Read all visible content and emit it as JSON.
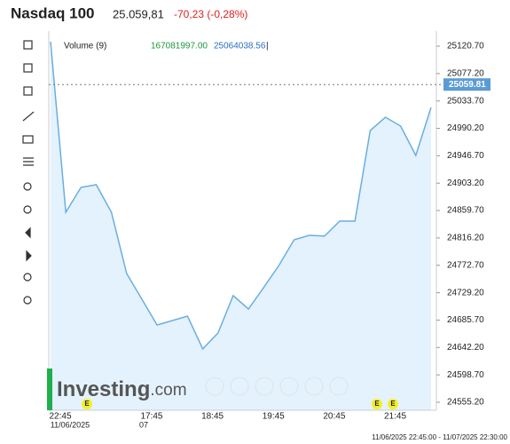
{
  "header": {
    "name": "Nasdaq 100",
    "price": "25.059,81",
    "change": "-70,23 (-0,28%)"
  },
  "legend": {
    "volume_label": "Volume (9)",
    "volume_value": "167081997.00",
    "ma_value": "25064038.56",
    "separator": "|"
  },
  "logo": [
    "Investing",
    ".com"
  ],
  "events": [
    "E",
    "E",
    "E"
  ],
  "range": "11/06/2025 22:45:00 - 11/07/2025 22:30:00",
  "chart_data": {
    "type": "area",
    "categories": [
      "22:45",
      null,
      null,
      null,
      null,
      null,
      "17:45",
      null,
      null,
      null,
      "18:45",
      null,
      null,
      null,
      "19:45",
      null,
      null,
      null,
      "20:45",
      null,
      null,
      null,
      "21:45",
      null,
      null,
      null
    ],
    "sublabels": [
      "11/06/2025",
      null,
      null,
      null,
      null,
      null,
      "07",
      null,
      null,
      null,
      null,
      null,
      null,
      null,
      null,
      null,
      null,
      null,
      null,
      null,
      null,
      null,
      null,
      null,
      null,
      null
    ],
    "values": [
      25127.75,
      24857.0,
      24896.5,
      24900.7,
      24857.0,
      24759.7,
      24718.8,
      24677.9,
      24685.0,
      24692.0,
      24639.9,
      24665.2,
      24724.5,
      24703.3,
      24737.2,
      24772.4,
      24813.3,
      24820.4,
      24819.0,
      24842.9,
      24842.9,
      24986.8,
      25007.9,
      24993.8,
      24947.3,
      25023.4
    ],
    "color": "#6aaee0",
    "fill": "#e4f2fd",
    "current": {
      "value": 25059.81,
      "label": "25059.81",
      "color": "#5b9bd5"
    },
    "ylim": [
      24542.5,
      25144.7
    ],
    "yticks": [
      {
        "value": 24555.2,
        "label": "24555.20"
      },
      {
        "value": 24598.7,
        "label": "24598.70"
      },
      {
        "value": 24642.2,
        "label": "24642.20"
      },
      {
        "value": 24685.7,
        "label": "24685.70"
      },
      {
        "value": 24729.2,
        "label": "24729.20"
      },
      {
        "value": 24772.7,
        "label": "24772.70"
      },
      {
        "value": 24816.2,
        "label": "24816.20"
      },
      {
        "value": 24859.7,
        "label": "24859.70"
      },
      {
        "value": 24903.2,
        "label": "24903.20"
      },
      {
        "value": 24946.7,
        "label": "24946.70"
      },
      {
        "value": 24990.2,
        "label": "24990.20"
      },
      {
        "value": 25033.7,
        "label": "25033.70"
      },
      {
        "value": 25077.2,
        "label": "25077.20"
      },
      {
        "value": 25120.7,
        "label": "25120.70"
      }
    ]
  }
}
